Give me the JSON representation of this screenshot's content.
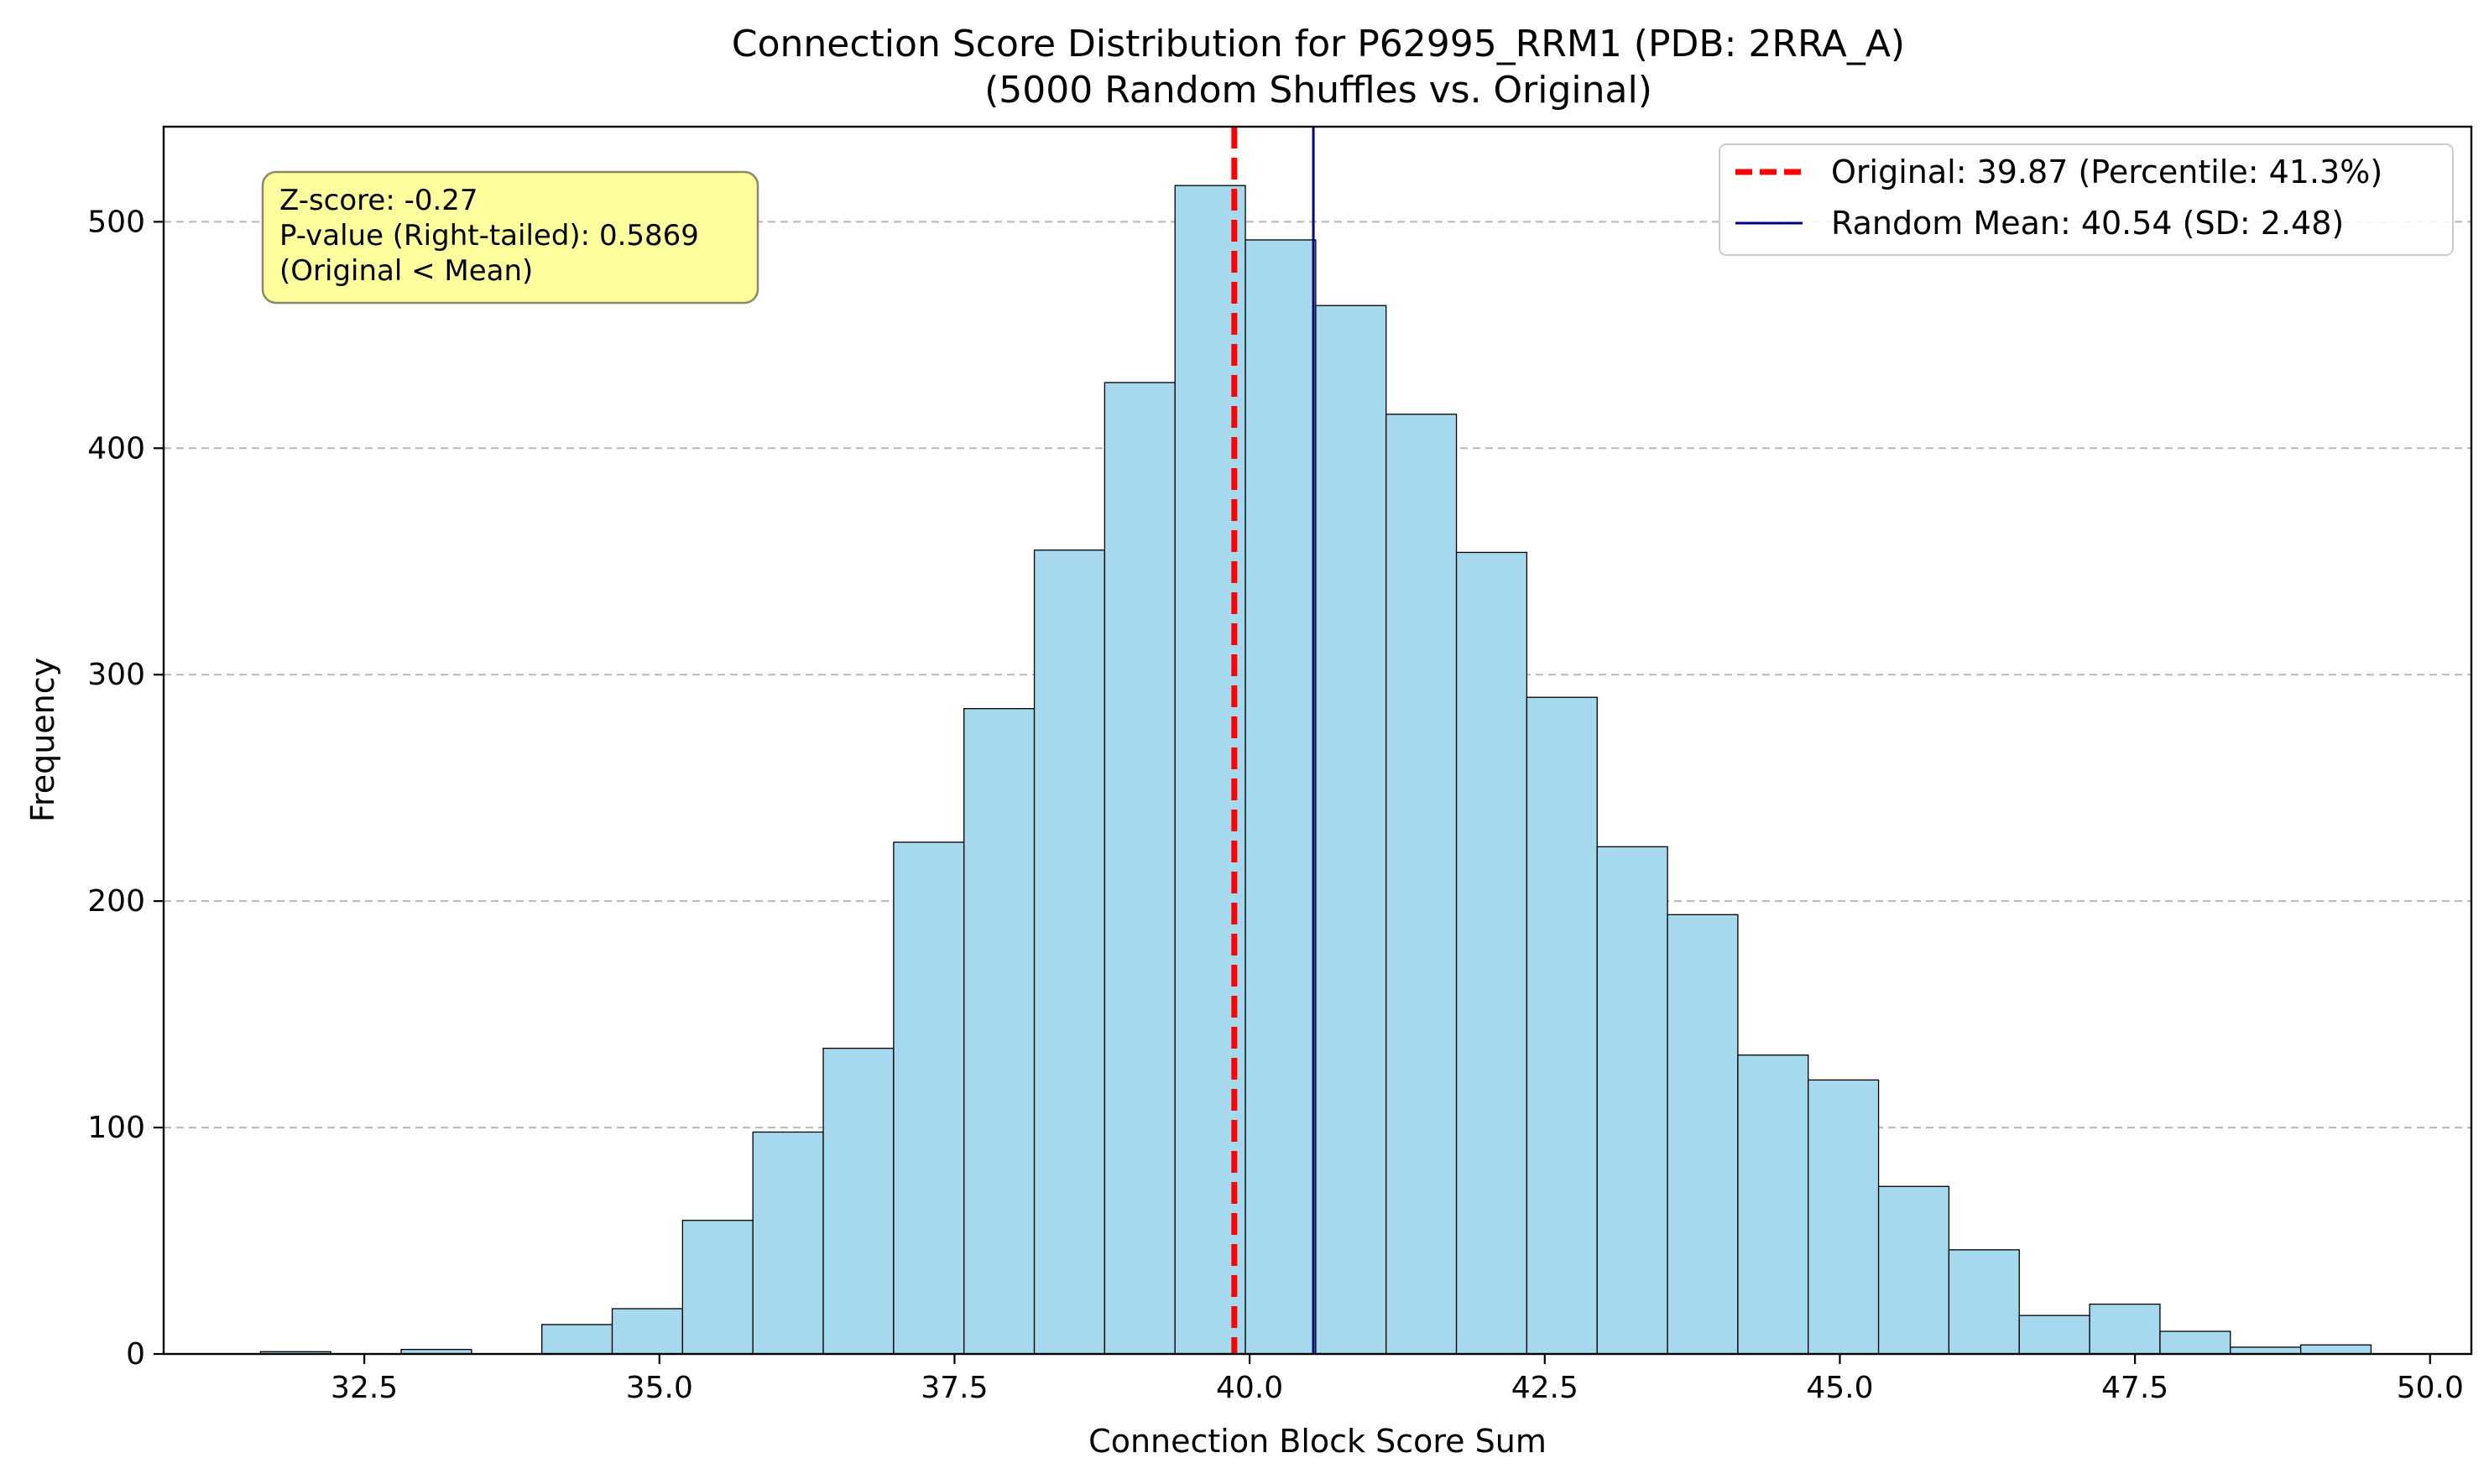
{
  "chart_data": {
    "type": "bar",
    "subtype": "histogram",
    "title": "Connection Score Distribution for P62995_RRM1 (PDB: 2RRA_A)",
    "subtitle": "(5000 Random Shuffles vs. Original)",
    "xlabel": "Connection Block Score Sum",
    "ylabel": "Frequency",
    "xlim": [
      30.8,
      50.35
    ],
    "ylim": [
      0,
      542
    ],
    "xticks": [
      32.5,
      35.0,
      37.5,
      40.0,
      42.5,
      45.0,
      47.5,
      50.0
    ],
    "xtick_labels": [
      "32.5",
      "35.0",
      "37.5",
      "40.0",
      "42.5",
      "45.0",
      "47.5",
      "50.0"
    ],
    "yticks": [
      0,
      100,
      200,
      300,
      400,
      500
    ],
    "ytick_labels": [
      "0",
      "100",
      "200",
      "300",
      "400",
      "500"
    ],
    "grid": "y-dashed",
    "bin_edges": [
      31.62,
      32.216,
      32.812,
      33.408,
      34.004,
      34.6,
      35.196,
      35.792,
      36.388,
      36.984,
      37.58,
      38.176,
      38.772,
      39.368,
      39.964,
      40.56,
      41.156,
      41.752,
      42.348,
      42.944,
      43.54,
      44.136,
      44.732,
      45.328,
      45.924,
      46.52,
      47.116,
      47.712,
      48.308,
      48.904,
      49.5
    ],
    "counts": [
      1,
      0,
      2,
      0,
      13,
      20,
      59,
      98,
      135,
      226,
      285,
      355,
      429,
      516,
      492,
      463,
      415,
      354,
      290,
      224,
      194,
      132,
      121,
      74,
      46,
      17,
      22,
      10,
      3,
      4
    ],
    "bar_fill": "#a6d8ee",
    "bar_edge": "#000000",
    "vlines": [
      {
        "name": "Original: 39.87 (Percentile: 41.3%)",
        "x": 39.87,
        "color": "#ff0000",
        "style": "dashed"
      },
      {
        "name": "Random Mean: 40.54 (SD: 2.48)",
        "x": 40.54,
        "color": "#00007f",
        "style": "solid"
      }
    ],
    "legend_position": "top-right",
    "annotation": {
      "lines": [
        "Z-score: -0.27",
        "P-value (Right-tailed): 0.5869",
        "(Original < Mean)"
      ],
      "background": "#ffff99",
      "position": "top-left"
    }
  }
}
